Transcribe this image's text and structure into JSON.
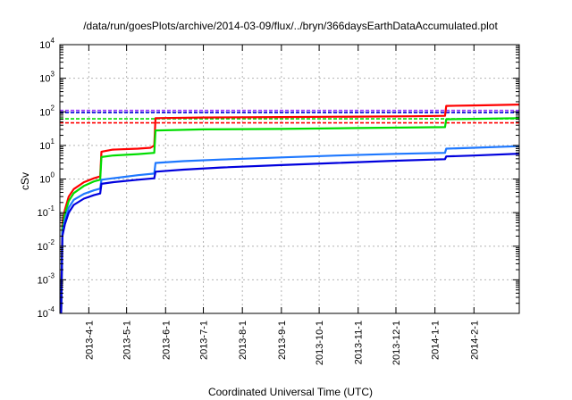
{
  "chart_data": {
    "type": "line",
    "title": "/data/run/goesPlots/archive/2014-03-09/flux/../bryn/366daysEarthDataAccumulated.plot",
    "xlabel": "Coordinated Universal Time (UTC)",
    "ylabel": "cSv",
    "y_scale": "log",
    "ylim": [
      0.0001,
      10000
    ],
    "xlim": [
      "2013-03-09",
      "2014-03-09"
    ],
    "grid": true,
    "x_ticks": [
      "2013-4-1",
      "2013-5-1",
      "2013-6-1",
      "2013-7-1",
      "2013-8-1",
      "2013-9-1",
      "2013-10-1",
      "2013-11-1",
      "2013-12-1",
      "2014-1-1",
      "2014-2-1"
    ],
    "y_ticks": [
      {
        "value": 0.0001,
        "base": "10",
        "exp": "-4"
      },
      {
        "value": 0.001,
        "base": "10",
        "exp": "-3"
      },
      {
        "value": 0.01,
        "base": "10",
        "exp": "-2"
      },
      {
        "value": 0.1,
        "base": "10",
        "exp": "-1"
      },
      {
        "value": 1,
        "base": "10",
        "exp": "0"
      },
      {
        "value": 10,
        "base": "10",
        "exp": "1"
      },
      {
        "value": 100,
        "base": "10",
        "exp": "2"
      },
      {
        "value": 1000,
        "base": "10",
        "exp": "3"
      },
      {
        "value": 10000,
        "base": "10",
        "exp": "4"
      }
    ],
    "series": [
      {
        "color": "#ff0000",
        "points": [
          [
            "2013-03-10",
            0.0001
          ],
          [
            "2013-03-11",
            0.05
          ],
          [
            "2013-03-13",
            0.12
          ],
          [
            "2013-03-16",
            0.3
          ],
          [
            "2013-03-20",
            0.5
          ],
          [
            "2013-03-28",
            0.8
          ],
          [
            "2013-04-05",
            1.05
          ],
          [
            "2013-04-10",
            1.2
          ],
          [
            "2013-04-11",
            6.5
          ],
          [
            "2013-04-20",
            7.5
          ],
          [
            "2013-05-10",
            8.0
          ],
          [
            "2013-05-20",
            8.5
          ],
          [
            "2013-05-23",
            10.0
          ],
          [
            "2013-05-24",
            65
          ],
          [
            "2013-06-30",
            68
          ],
          [
            "2013-09-01",
            70
          ],
          [
            "2013-11-01",
            72
          ],
          [
            "2013-12-15",
            74
          ],
          [
            "2014-01-09",
            76
          ],
          [
            "2014-01-10",
            150
          ],
          [
            "2014-02-01",
            155
          ],
          [
            "2014-03-09",
            165
          ]
        ]
      },
      {
        "color": "#00dd00",
        "points": [
          [
            "2013-03-10",
            0.0001
          ],
          [
            "2013-03-11",
            0.035
          ],
          [
            "2013-03-13",
            0.09
          ],
          [
            "2013-03-16",
            0.22
          ],
          [
            "2013-03-20",
            0.38
          ],
          [
            "2013-03-28",
            0.62
          ],
          [
            "2013-04-05",
            0.85
          ],
          [
            "2013-04-10",
            0.95
          ],
          [
            "2013-04-11",
            4.5
          ],
          [
            "2013-04-20",
            5.0
          ],
          [
            "2013-05-10",
            5.5
          ],
          [
            "2013-05-23",
            6.0
          ],
          [
            "2013-05-24",
            28
          ],
          [
            "2013-07-01",
            30
          ],
          [
            "2013-09-01",
            31
          ],
          [
            "2013-11-01",
            33
          ],
          [
            "2014-01-09",
            35
          ],
          [
            "2014-01-10",
            60
          ],
          [
            "2014-02-01",
            62
          ],
          [
            "2014-03-09",
            65
          ]
        ]
      },
      {
        "color": "#1e78ff",
        "points": [
          [
            "2013-03-10",
            0.0001
          ],
          [
            "2013-03-11",
            0.025
          ],
          [
            "2013-03-13",
            0.06
          ],
          [
            "2013-03-16",
            0.14
          ],
          [
            "2013-03-20",
            0.24
          ],
          [
            "2013-03-28",
            0.36
          ],
          [
            "2013-04-05",
            0.46
          ],
          [
            "2013-04-10",
            0.52
          ],
          [
            "2013-04-11",
            0.95
          ],
          [
            "2013-04-20",
            1.05
          ],
          [
            "2013-05-10",
            1.3
          ],
          [
            "2013-05-23",
            1.45
          ],
          [
            "2013-05-24",
            3.0
          ],
          [
            "2013-06-15",
            3.4
          ],
          [
            "2013-07-15",
            3.8
          ],
          [
            "2013-09-01",
            4.4
          ],
          [
            "2013-10-15",
            5.0
          ],
          [
            "2013-12-01",
            5.6
          ],
          [
            "2014-01-09",
            6.0
          ],
          [
            "2014-01-10",
            8.0
          ],
          [
            "2014-02-01",
            8.5
          ],
          [
            "2014-03-09",
            9.5
          ]
        ]
      },
      {
        "color": "#0000dd",
        "points": [
          [
            "2013-03-10",
            0.0001
          ],
          [
            "2013-03-11",
            0.02
          ],
          [
            "2013-03-13",
            0.045
          ],
          [
            "2013-03-16",
            0.1
          ],
          [
            "2013-03-20",
            0.17
          ],
          [
            "2013-03-28",
            0.26
          ],
          [
            "2013-04-05",
            0.33
          ],
          [
            "2013-04-10",
            0.37
          ],
          [
            "2013-04-11",
            0.72
          ],
          [
            "2013-04-20",
            0.8
          ],
          [
            "2013-05-10",
            0.95
          ],
          [
            "2013-05-23",
            1.05
          ],
          [
            "2013-05-24",
            1.65
          ],
          [
            "2013-06-15",
            1.9
          ],
          [
            "2013-07-15",
            2.2
          ],
          [
            "2013-09-01",
            2.6
          ],
          [
            "2013-10-15",
            3.0
          ],
          [
            "2013-12-01",
            3.5
          ],
          [
            "2014-01-09",
            3.9
          ],
          [
            "2014-01-10",
            4.7
          ],
          [
            "2014-02-01",
            5.0
          ],
          [
            "2014-03-09",
            5.7
          ]
        ]
      }
    ],
    "reference_lines": [
      {
        "color": "#9933ff",
        "value": 110
      },
      {
        "color": "#0000dd",
        "value": 95
      },
      {
        "color": "#00dd00",
        "value": 62
      },
      {
        "color": "#ff0000",
        "value": 47
      }
    ]
  }
}
